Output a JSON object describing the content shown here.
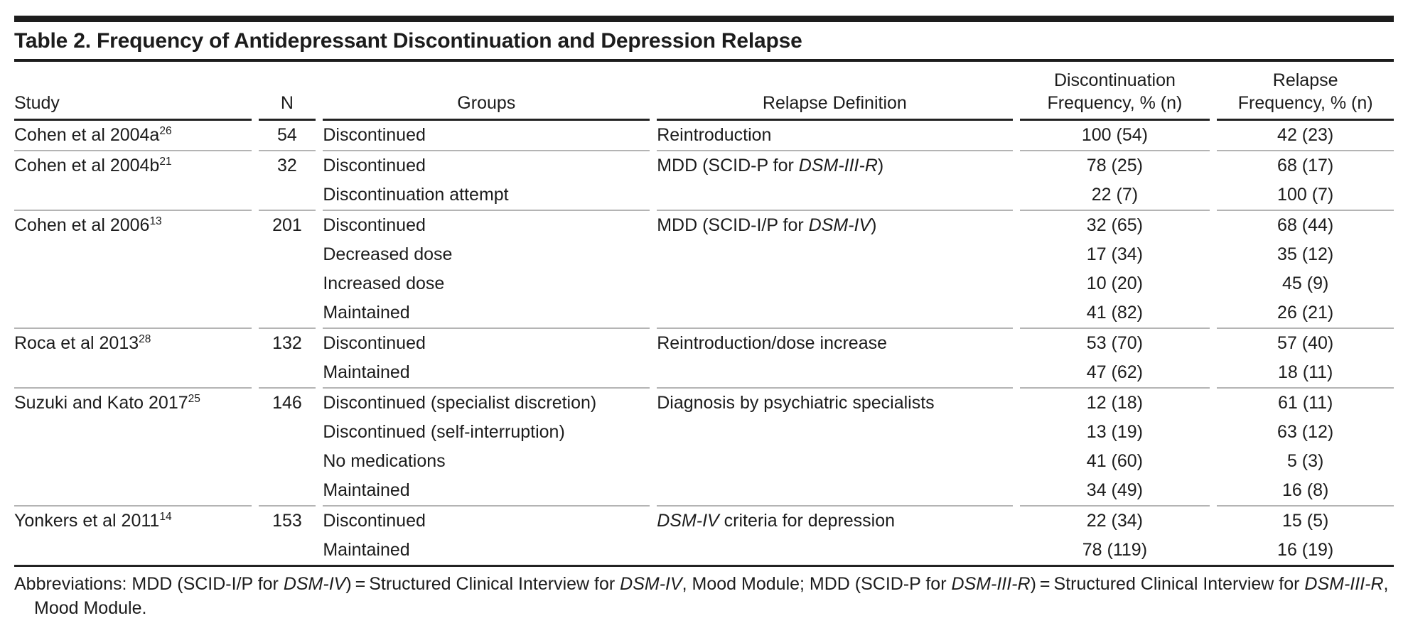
{
  "title": "Table 2. Frequency of Antidepressant Discontinuation and Depression Relapse",
  "colors": {
    "background": "#ffffff",
    "text": "#1c1c1c",
    "rule_dark": "#1d1d1d",
    "rule_light": "#b4b4b4"
  },
  "table": {
    "headers": {
      "study": "Study",
      "n": "N",
      "groups": "Groups",
      "relapse_definition": "Relapse Definition",
      "discontinuation": {
        "l1": "Discontinuation",
        "l2": "Frequency, % (n)"
      },
      "relapse": {
        "l1": "Relapse",
        "l2": "Frequency, % (n)"
      }
    },
    "studies": [
      {
        "study": "Cohen et al 2004a",
        "ref": "26",
        "n": "54",
        "relapse_definition": "Reintroduction",
        "groups": [
          {
            "group": "Discontinued",
            "discontinuation_frequency": "100 (54)",
            "relapse_frequency": "42 (23)"
          }
        ]
      },
      {
        "study": "Cohen et al 2004b",
        "ref": "21",
        "n": "32",
        "relapse_definition": "MDD (SCID-P for *DSM-III-R*)",
        "groups": [
          {
            "group": "Discontinued",
            "discontinuation_frequency": "78 (25)",
            "relapse_frequency": "68 (17)"
          },
          {
            "group": "Discontinuation attempt",
            "discontinuation_frequency": "22 (7)",
            "relapse_frequency": "100 (7)"
          }
        ]
      },
      {
        "study": "Cohen et al 2006",
        "ref": "13",
        "n": "201",
        "relapse_definition": "MDD (SCID-I/P for *DSM-IV*)",
        "groups": [
          {
            "group": "Discontinued",
            "discontinuation_frequency": "32 (65)",
            "relapse_frequency": "68 (44)"
          },
          {
            "group": "Decreased dose",
            "discontinuation_frequency": "17 (34)",
            "relapse_frequency": "35 (12)"
          },
          {
            "group": "Increased dose",
            "discontinuation_frequency": "10 (20)",
            "relapse_frequency": "45 (9)"
          },
          {
            "group": "Maintained",
            "discontinuation_frequency": "41 (82)",
            "relapse_frequency": "26 (21)"
          }
        ]
      },
      {
        "study": "Roca et al 2013",
        "ref": "28",
        "n": "132",
        "relapse_definition": "Reintroduction/dose increase",
        "groups": [
          {
            "group": "Discontinued",
            "discontinuation_frequency": "53 (70)",
            "relapse_frequency": "57 (40)"
          },
          {
            "group": "Maintained",
            "discontinuation_frequency": "47 (62)",
            "relapse_frequency": "18 (11)"
          }
        ]
      },
      {
        "study": "Suzuki and Kato 2017",
        "ref": "25",
        "n": "146",
        "relapse_definition": "Diagnosis by psychiatric specialists",
        "groups": [
          {
            "group": "Discontinued (specialist discretion)",
            "discontinuation_frequency": "12 (18)",
            "relapse_frequency": "61 (11)"
          },
          {
            "group": "Discontinued (self-interruption)",
            "discontinuation_frequency": "13 (19)",
            "relapse_frequency": "63 (12)"
          },
          {
            "group": "No medications",
            "discontinuation_frequency": "41 (60)",
            "relapse_frequency": "5 (3)"
          },
          {
            "group": "Maintained",
            "discontinuation_frequency": "34 (49)",
            "relapse_frequency": "16 (8)"
          }
        ]
      },
      {
        "study": "Yonkers et al 2011",
        "ref": "14",
        "n": "153",
        "relapse_definition": "*DSM-IV* criteria for depression",
        "groups": [
          {
            "group": "Discontinued",
            "discontinuation_frequency": "22 (34)",
            "relapse_frequency": "15 (5)"
          },
          {
            "group": "Maintained",
            "discontinuation_frequency": "78 (119)",
            "relapse_frequency": "16 (19)"
          }
        ]
      }
    ]
  },
  "footnote": "Abbreviations: MDD (SCID-I/P for *DSM-IV*) = Structured Clinical Interview for *DSM-IV*, Mood Module; MDD (SCID-P for *DSM-III-R*) = Structured Clinical Interview for *DSM-III-R*, Mood Module."
}
